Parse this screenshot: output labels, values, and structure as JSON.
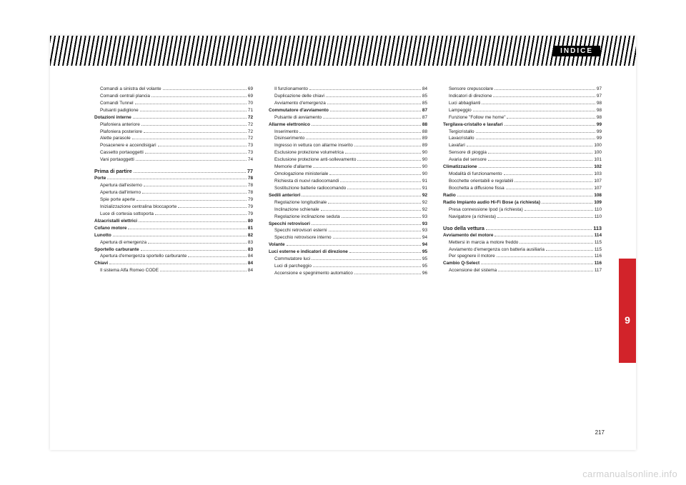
{
  "header": {
    "title": "INDICE"
  },
  "side_tab": {
    "number": "9",
    "bg": "#d2232a"
  },
  "page_number": "217",
  "watermark": "carmanualsonline.info",
  "columns": [
    [
      {
        "t": "sub",
        "label": "Comandi a sinistra del volante",
        "pg": "69"
      },
      {
        "t": "sub",
        "label": "Comandi centrali plancia",
        "pg": "69"
      },
      {
        "t": "sub",
        "label": "Comandi Tunnel",
        "pg": "70"
      },
      {
        "t": "sub",
        "label": "Pulsanti padiglione",
        "pg": "71"
      },
      {
        "t": "h",
        "label": "Dotazioni interne",
        "pg": "72"
      },
      {
        "t": "sub",
        "label": "Plafoniera anteriore",
        "pg": "72"
      },
      {
        "t": "sub",
        "label": "Plafoniera posteriore",
        "pg": "72"
      },
      {
        "t": "sub",
        "label": "Alette parasole",
        "pg": "72"
      },
      {
        "t": "sub",
        "label": "Posacenere e accendisigari",
        "pg": "73"
      },
      {
        "t": "sub",
        "label": "Cassetto portaoggetti",
        "pg": "73"
      },
      {
        "t": "sub",
        "label": "Vani portaoggetti",
        "pg": "74"
      },
      {
        "t": "sec",
        "label": "Prima di partire",
        "pg": "77"
      },
      {
        "t": "h",
        "label": "Porte",
        "pg": "78"
      },
      {
        "t": "sub",
        "label": "Apertura dall'esterno",
        "pg": "78"
      },
      {
        "t": "sub",
        "label": "Apertura dall'interno",
        "pg": "78"
      },
      {
        "t": "sub",
        "label": "Spie porte aperte",
        "pg": "79"
      },
      {
        "t": "sub",
        "label": "Inizializzazione centralina bloccaporte",
        "pg": "79"
      },
      {
        "t": "sub",
        "label": "Luce di cortesia sottoporta",
        "pg": "79"
      },
      {
        "t": "h",
        "label": "Alzacristalli elettrici",
        "pg": "80"
      },
      {
        "t": "h",
        "label": "Cofano motore",
        "pg": "81"
      },
      {
        "t": "h",
        "label": "Lunotto",
        "pg": "82"
      },
      {
        "t": "sub",
        "label": "Apertura di emergenza",
        "pg": "83"
      },
      {
        "t": "h",
        "label": "Sportello carburante",
        "pg": "83"
      },
      {
        "t": "sub",
        "label": "Apertura d'emergenza sportello   carburante",
        "pg": "84"
      },
      {
        "t": "h",
        "label": "Chiavi",
        "pg": "84"
      },
      {
        "t": "sub",
        "label": "Il sistema Alfa Romeo CODE",
        "pg": "84"
      }
    ],
    [
      {
        "t": "sub",
        "label": "Il funzionamento",
        "pg": "84"
      },
      {
        "t": "sub",
        "label": "Duplicazione delle chiavi",
        "pg": "85"
      },
      {
        "t": "sub",
        "label": "Avviamento d'emergenza",
        "pg": "85"
      },
      {
        "t": "h",
        "label": "Commutatore d'avviamento",
        "pg": "87"
      },
      {
        "t": "sub",
        "label": "Pulsante di avviamento",
        "pg": "87"
      },
      {
        "t": "h",
        "label": "Allarme elettronico",
        "pg": "88"
      },
      {
        "t": "sub",
        "label": "Inserimento",
        "pg": "88"
      },
      {
        "t": "sub",
        "label": "Disinserimento",
        "pg": "89"
      },
      {
        "t": "sub",
        "label": "Ingresso in vettura con allarme inserito",
        "pg": "89"
      },
      {
        "t": "sub",
        "label": "Esclusione protezione volumetrica",
        "pg": "90"
      },
      {
        "t": "sub",
        "label": "Esclusione protezione anti-sollevamento",
        "pg": "90"
      },
      {
        "t": "sub",
        "label": "Memorie d'allarme",
        "pg": "90"
      },
      {
        "t": "sub",
        "label": "Omologazione ministeriale",
        "pg": "90"
      },
      {
        "t": "sub",
        "label": "Richiesta di nuovi radiocomandi",
        "pg": "91"
      },
      {
        "t": "sub",
        "label": "Sostituzione batterie radiocomando",
        "pg": "91"
      },
      {
        "t": "h",
        "label": "Sedili anteriori",
        "pg": "92"
      },
      {
        "t": "sub",
        "label": "Regolazione longitudinale",
        "pg": "92"
      },
      {
        "t": "sub",
        "label": "Inclinazione schienale",
        "pg": "92"
      },
      {
        "t": "sub",
        "label": "Regolazione inclinazione seduta",
        "pg": "93"
      },
      {
        "t": "h",
        "label": "Specchi retrovisori",
        "pg": "93"
      },
      {
        "t": "sub",
        "label": "Specchi retrovisori esterni",
        "pg": "93"
      },
      {
        "t": "sub",
        "label": "Specchio retrovisore interno",
        "pg": "94"
      },
      {
        "t": "h",
        "label": "Volante",
        "pg": "94"
      },
      {
        "t": "h",
        "label": "Luci esterne e indicatori di direzione",
        "pg": "95"
      },
      {
        "t": "sub",
        "label": "Commutatore luci",
        "pg": "95"
      },
      {
        "t": "sub",
        "label": "Luci di parcheggio",
        "pg": "95"
      },
      {
        "t": "sub",
        "label": "Accensione e spegnimento automatico",
        "pg": "96"
      }
    ],
    [
      {
        "t": "sub",
        "label": "Sensore crepuscolare",
        "pg": "97"
      },
      {
        "t": "sub",
        "label": "Indicatori di direzione",
        "pg": "97"
      },
      {
        "t": "sub",
        "label": "Luci abbaglianti",
        "pg": "98"
      },
      {
        "t": "sub",
        "label": "Lampeggio",
        "pg": "98"
      },
      {
        "t": "sub",
        "label": "Funzione \"Follow me home\"",
        "pg": "98"
      },
      {
        "t": "h",
        "label": "Tergilava-cristallo e lavafari",
        "pg": "99"
      },
      {
        "t": "sub",
        "label": "Tergicristallo",
        "pg": "99"
      },
      {
        "t": "sub",
        "label": "Lavacristallo",
        "pg": "99"
      },
      {
        "t": "sub",
        "label": "Lavafari",
        "pg": "100"
      },
      {
        "t": "sub",
        "label": "Sensore di pioggia",
        "pg": "100"
      },
      {
        "t": "sub",
        "label": "Avaria del sensore",
        "pg": "101"
      },
      {
        "t": "h",
        "label": "Climatizzazione",
        "pg": "102"
      },
      {
        "t": "sub",
        "label": "Modalità di funzionamento",
        "pg": "103"
      },
      {
        "t": "sub",
        "label": "Bocchette orientabili e regolabili",
        "pg": "107"
      },
      {
        "t": "sub",
        "label": "Bocchetta a diffusione fissa",
        "pg": "107"
      },
      {
        "t": "h",
        "label": "Radio",
        "pg": "108"
      },
      {
        "t": "h",
        "label": "Radio Impianto audio Hi-Fi Bose (a richiesta)",
        "pg": "109"
      },
      {
        "t": "sub",
        "label": "Presa connessione Ipod (a richiesta)",
        "pg": "110"
      },
      {
        "t": "sub",
        "label": "Navigatore (a richiesta)",
        "pg": "110"
      },
      {
        "t": "sec",
        "label": "Uso della vettura",
        "pg": "113"
      },
      {
        "t": "h",
        "label": "Avviamento del motore",
        "pg": "114"
      },
      {
        "t": "sub",
        "label": "Mettersi in marcia a motore freddo",
        "pg": "115"
      },
      {
        "t": "sub",
        "label": "Avviamento d'emergenza con batteria ausiliaria",
        "pg": "115"
      },
      {
        "t": "sub",
        "label": "Per spegnere il motore",
        "pg": "116"
      },
      {
        "t": "h",
        "label": "Cambio Q-Select",
        "pg": "116"
      },
      {
        "t": "sub",
        "label": "Accensione del sistema",
        "pg": "117"
      }
    ]
  ]
}
